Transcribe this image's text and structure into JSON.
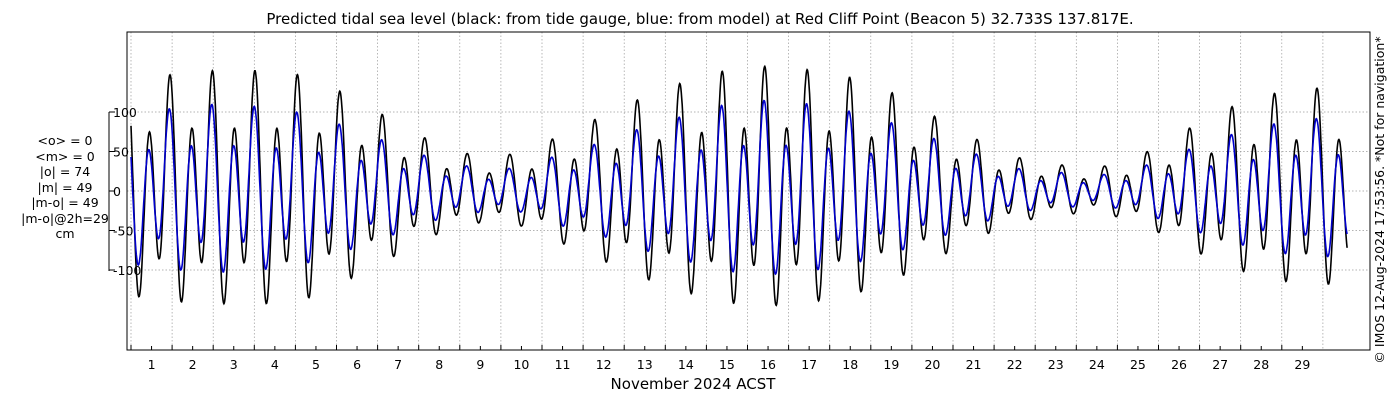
{
  "chart_data": {
    "type": "line",
    "title": "Predicted tidal sea level (black: from tide gauge, blue: from model) at Red Cliff Point (Beacon 5) 32.733S 137.817E.",
    "xlabel": "November 2024 ACST",
    "ylabel": "",
    "x_ticks": [
      "1",
      "2",
      "3",
      "4",
      "5",
      "6",
      "7",
      "8",
      "9",
      "10",
      "11",
      "12",
      "13",
      "14",
      "15",
      "16",
      "17",
      "18",
      "19",
      "20",
      "21",
      "22",
      "23",
      "24",
      "25",
      "26",
      "27",
      "28",
      "29"
    ],
    "y_ticks": [
      "100",
      "50",
      "0",
      "-50",
      "-100"
    ],
    "y_tick_values": [
      100,
      50,
      0,
      -50,
      -100
    ],
    "xlim_days": [
      0,
      30
    ],
    "ylim": [
      -200,
      200
    ],
    "grid": true,
    "series": [
      {
        "name": "from tide gauge",
        "color": "#000000",
        "description_units": "cm",
        "daily_high_amplitude": [
          150,
          150,
          160,
          160,
          160,
          150,
          120,
          90,
          60,
          45,
          50,
          75,
          100,
          125,
          145,
          160,
          165,
          160,
          150,
          130,
          100,
          70,
          45,
          35,
          30,
          45,
          75,
          105,
          125,
          135
        ]
      },
      {
        "name": "from model",
        "color": "#0000cc",
        "description_units": "cm",
        "daily_high_amplitude": [
          105,
          105,
          115,
          115,
          110,
          100,
          80,
          60,
          40,
          30,
          30,
          50,
          65,
          85,
          100,
          115,
          120,
          115,
          105,
          90,
          70,
          50,
          30,
          25,
          20,
          30,
          50,
          70,
          85,
          95
        ]
      }
    ]
  },
  "stats": {
    "lines": [
      "<o> = 0",
      "<m> = 0",
      "|o| = 74",
      "|m| = 49",
      "|m-o| = 49",
      "|m-o|@2h=29",
      "cm"
    ]
  },
  "credit": "© IMOS 12-Aug-2024 17:53:56. *Not for navigation*",
  "colors": {
    "observed": "#000000",
    "model": "#0000cc",
    "grid": "#9a9a9a"
  }
}
